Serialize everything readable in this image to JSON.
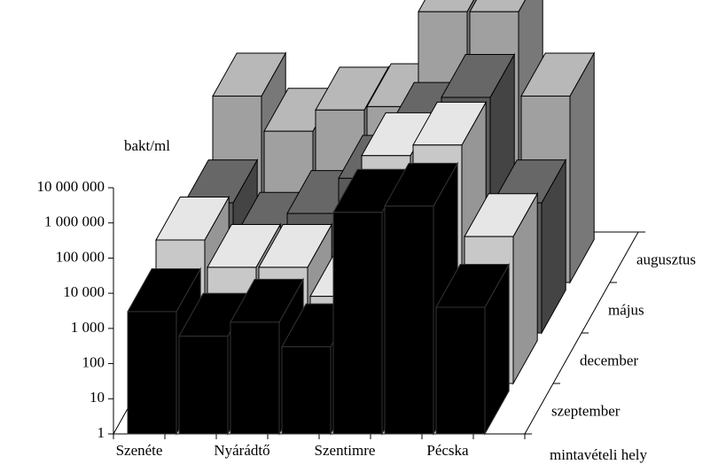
{
  "chart_data": {
    "type": "bar3d",
    "y_label": "bakt/ml",
    "x_label": "mintavételi hely",
    "log_scale": true,
    "categories": [
      "Szenéte",
      null,
      "Nyárádtő",
      null,
      "Szentimre",
      null,
      "Pécska"
    ],
    "ylim": [
      1,
      10000000
    ],
    "yticks": [
      1,
      10,
      100,
      {
        "value": 1000,
        "label": "1 000"
      },
      {
        "value": 10000,
        "label": "10 000"
      },
      {
        "value": 100000,
        "label": "100 000"
      },
      {
        "value": 1000000,
        "label": "1 000 000"
      },
      {
        "value": 10000000,
        "label": "10 000 000"
      }
    ],
    "series": [
      {
        "name": "szeptember",
        "color": "#000000",
        "values": [
          3000,
          600,
          1500,
          300,
          2000000,
          3000000,
          4000
        ]
      },
      {
        "name": "december",
        "color": "#c8c8c8",
        "values": [
          12000,
          2000,
          2000,
          300,
          3000000,
          6000000,
          15000
        ]
      },
      {
        "name": "május",
        "color": "#5a5a5a",
        "values": [
          5000,
          600,
          2500,
          25000,
          800000,
          5000000,
          5000
        ]
      },
      {
        "name": "augusztus",
        "color": "#a0a0a0",
        "values": [
          200000,
          20000,
          80000,
          100000,
          50000000,
          50000000,
          200000
        ]
      }
    ]
  }
}
